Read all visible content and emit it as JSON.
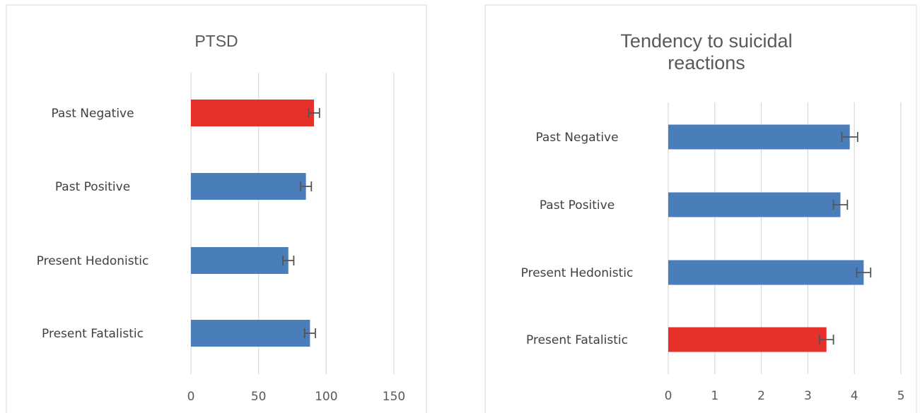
{
  "colors": {
    "normal": "#4a7ebb",
    "highlight": "#e8302a",
    "grid": "#d9d9d9",
    "error": "#555555",
    "frame": "#d9d9d9"
  },
  "chart_data": [
    {
      "type": "bar",
      "orientation": "horizontal",
      "title": "PTSD",
      "categories": [
        "Past Negative",
        "Past Positive",
        "Present Hedonistic",
        "Present Fatalistic"
      ],
      "values": [
        91,
        85,
        72,
        88
      ],
      "errors": [
        4,
        4,
        4,
        4
      ],
      "highlight": [
        true,
        false,
        false,
        false
      ],
      "xlim": [
        0,
        150
      ],
      "xticks": [
        "0",
        "50",
        "100",
        "150"
      ],
      "grid": true
    },
    {
      "type": "bar",
      "orientation": "horizontal",
      "title": "Tendency to suicidal reactions",
      "title_lines": [
        "Tendency to suicidal",
        "reactions"
      ],
      "categories": [
        "Past Negative",
        "Past Positive",
        "Present Hedonistic",
        "Present Fatalistic"
      ],
      "values": [
        3.9,
        3.7,
        4.2,
        3.4
      ],
      "errors": [
        0.17,
        0.15,
        0.15,
        0.15
      ],
      "highlight": [
        false,
        false,
        false,
        true
      ],
      "xlim": [
        0,
        5
      ],
      "xticks": [
        "0",
        "1",
        "2",
        "3",
        "4",
        "5"
      ],
      "grid": true
    }
  ]
}
